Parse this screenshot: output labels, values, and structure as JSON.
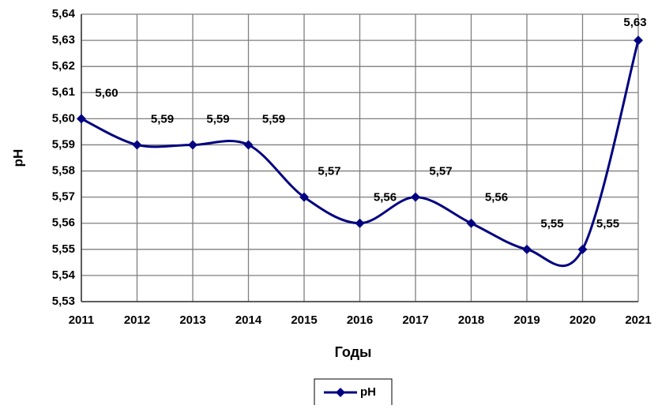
{
  "chart_data": {
    "type": "line",
    "categories": [
      "2011",
      "2012",
      "2013",
      "2014",
      "2015",
      "2016",
      "2017",
      "2018",
      "2019",
      "2020",
      "2021"
    ],
    "series": [
      {
        "name": "pH",
        "color": "#000080",
        "values": [
          5.6,
          5.59,
          5.59,
          5.59,
          5.57,
          5.56,
          5.57,
          5.56,
          5.55,
          5.55,
          5.63
        ],
        "value_labels": [
          "5,60",
          "5,59",
          "5,59",
          "5,59",
          "5,57",
          "5,56",
          "5,57",
          "5,56",
          "5,55",
          "5,55",
          "5,63"
        ]
      }
    ],
    "ylim": [
      5.53,
      5.64
    ],
    "yticks": [
      {
        "value": 5.53,
        "label": "5,53"
      },
      {
        "value": 5.54,
        "label": "5,54"
      },
      {
        "value": 5.55,
        "label": "5,55"
      },
      {
        "value": 5.56,
        "label": "5,56"
      },
      {
        "value": 5.57,
        "label": "5,57"
      },
      {
        "value": 5.58,
        "label": "5,58"
      },
      {
        "value": 5.59,
        "label": "5,59"
      },
      {
        "value": 5.6,
        "label": "5,60"
      },
      {
        "value": 5.61,
        "label": "5,61"
      },
      {
        "value": 5.62,
        "label": "5,62"
      },
      {
        "value": 5.63,
        "label": "5,63"
      },
      {
        "value": 5.64,
        "label": "5,64"
      }
    ],
    "ylabel": "pH",
    "xlabel": "Годы",
    "grid": true,
    "smooth": true,
    "legend": "bottom"
  }
}
